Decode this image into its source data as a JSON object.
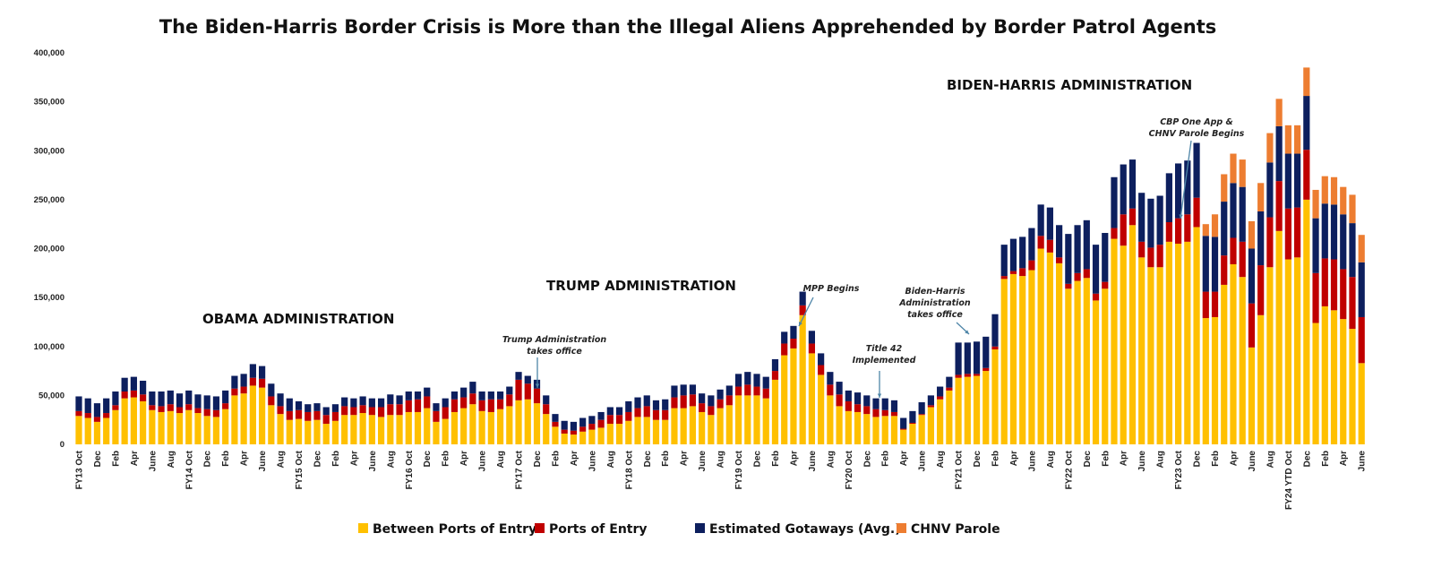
{
  "chart_data": {
    "type": "bar",
    "stacked": true,
    "title": "The Biden-Harris Border Crisis is More than the Illegal Aliens Apprehended by Border Patrol Agents",
    "ylim": [
      0,
      400000
    ],
    "y_ticks": [
      "0",
      "50,000",
      "100,000",
      "150,000",
      "200,000",
      "250,000",
      "300,000",
      "350,000",
      "400,000"
    ],
    "grid": false,
    "legend_position": "bottom",
    "x_tick_labels": [
      "FY13 Oct",
      "Dec",
      "Feb",
      "Apr",
      "June",
      "Aug",
      "FY14 Oct",
      "Dec",
      "Feb",
      "Apr",
      "June",
      "Aug",
      "FY15 Oct",
      "Dec",
      "Feb",
      "Apr",
      "June",
      "Aug",
      "FY16 Oct",
      "Dec",
      "Feb",
      "Apr",
      "June",
      "Aug",
      "FY17 Oct",
      "Dec",
      "Feb",
      "Apr",
      "June",
      "Aug",
      "FY18 Oct",
      "Dec",
      "Feb",
      "Apr",
      "June",
      "Aug",
      "FY19 Oct",
      "Dec",
      "Feb",
      "Apr",
      "June",
      "Aug",
      "FY20 Oct",
      "Dec",
      "Feb",
      "Apr",
      "June",
      "Aug",
      "FY21 Oct",
      "Dec",
      "Feb",
      "Apr",
      "June",
      "Aug",
      "FY22 Oct",
      "Dec",
      "Feb",
      "Apr",
      "June",
      "Aug",
      "FY23 Oct",
      "Dec",
      "Feb",
      "Apr",
      "June",
      "Aug",
      "FY24 YTD Oct",
      "Dec",
      "Feb",
      "Apr",
      "June"
    ],
    "series": [
      {
        "name": "Between Ports of Entry",
        "color": "#FFC000",
        "values": [
          29000,
          27000,
          23000,
          27000,
          35000,
          47000,
          48000,
          44000,
          35000,
          33000,
          34000,
          32000,
          35000,
          32000,
          29000,
          28000,
          36000,
          50000,
          52000,
          60000,
          58000,
          40000,
          31000,
          25000,
          26000,
          24000,
          25000,
          21000,
          24000,
          30000,
          30000,
          32000,
          30000,
          28000,
          30000,
          30000,
          33000,
          33000,
          37000,
          23000,
          26000,
          33000,
          37000,
          41000,
          34000,
          33000,
          36000,
          39000,
          45000,
          46000,
          42000,
          31000,
          18000,
          11000,
          10000,
          13000,
          15000,
          17000,
          21000,
          21000,
          24000,
          28000,
          28000,
          25000,
          25000,
          37000,
          37000,
          39000,
          33000,
          30000,
          37000,
          40000,
          50000,
          50000,
          50000,
          47000,
          66000,
          91000,
          98000,
          132000,
          93000,
          71000,
          50000,
          39000,
          34000,
          33000,
          31000,
          28000,
          29000,
          29000,
          15000,
          21000,
          30000,
          38000,
          46000,
          55000,
          68000,
          69000,
          70000,
          75000,
          97000,
          169000,
          174000,
          172000,
          178000,
          200000,
          196000,
          185000,
          159000,
          167000,
          170000,
          147000,
          159000,
          210000,
          203000,
          224000,
          191000,
          181000,
          181000,
          207000,
          205000,
          207000,
          222000,
          129000,
          130000,
          163000,
          184000,
          171000,
          99000,
          132000,
          181000,
          218000,
          189000,
          191000,
          250000,
          124000,
          141000,
          137000,
          128000,
          118000,
          83000
        ]
      },
      {
        "name": "Ports of Entry",
        "color": "#C00000",
        "values": [
          5000,
          5000,
          5000,
          5000,
          5000,
          7000,
          7000,
          7000,
          5000,
          6000,
          7000,
          6000,
          6000,
          5000,
          7000,
          7000,
          6000,
          7000,
          7000,
          8000,
          9000,
          9000,
          8000,
          9000,
          9000,
          9000,
          9000,
          9000,
          9000,
          9000,
          8000,
          8000,
          8000,
          10000,
          11000,
          11000,
          12000,
          13000,
          12000,
          11000,
          12000,
          13000,
          11000,
          11000,
          11000,
          13000,
          10000,
          12000,
          21000,
          16000,
          15000,
          10000,
          5000,
          4000,
          4000,
          5000,
          6000,
          8000,
          9000,
          9000,
          9000,
          9000,
          11000,
          10000,
          10000,
          11000,
          13000,
          12000,
          9000,
          9000,
          9000,
          10000,
          9000,
          11000,
          9000,
          10000,
          9000,
          12000,
          10000,
          10000,
          10000,
          10000,
          11000,
          12000,
          10000,
          8000,
          8000,
          8000,
          6000,
          4000,
          1000,
          1000,
          1000,
          2000,
          3000,
          3000,
          3000,
          3000,
          2000,
          3000,
          3000,
          3000,
          3000,
          8000,
          10000,
          13000,
          13000,
          6000,
          5000,
          8000,
          9000,
          7000,
          7000,
          11000,
          32000,
          17000,
          16000,
          20000,
          23000,
          20000,
          26000,
          28000,
          30000,
          27000,
          26000,
          30000,
          27000,
          36000,
          45000,
          51000,
          51000,
          51000,
          52000,
          51000,
          51000,
          51000,
          49000,
          52000,
          51000,
          53000,
          47000
        ]
      },
      {
        "name": "Estimated Gotaways (Avg.)",
        "color": "#0D1F5E",
        "values": [
          15000,
          15000,
          14000,
          15000,
          14000,
          14000,
          14000,
          14000,
          14000,
          15000,
          14000,
          14000,
          14000,
          14000,
          14000,
          14000,
          13000,
          13000,
          13000,
          14000,
          13000,
          13000,
          13000,
          13000,
          9000,
          8000,
          8000,
          8000,
          8000,
          9000,
          9000,
          9000,
          9000,
          9000,
          10000,
          9000,
          9000,
          8000,
          9000,
          8000,
          9000,
          8000,
          10000,
          12000,
          9000,
          8000,
          8000,
          8000,
          8000,
          8000,
          9000,
          9000,
          8000,
          9000,
          9000,
          9000,
          8000,
          8000,
          8000,
          8000,
          11000,
          11000,
          11000,
          10000,
          11000,
          12000,
          11000,
          10000,
          10000,
          11000,
          10000,
          10000,
          13000,
          13000,
          13000,
          12000,
          12000,
          12000,
          13000,
          14000,
          13000,
          12000,
          13000,
          13000,
          11000,
          12000,
          11000,
          11000,
          12000,
          12000,
          11000,
          12000,
          12000,
          10000,
          10000,
          11000,
          33000,
          32000,
          33000,
          32000,
          33000,
          32000,
          33000,
          32000,
          33000,
          32000,
          33000,
          33000,
          51000,
          49000,
          50000,
          50000,
          50000,
          52000,
          51000,
          50000,
          50000,
          50000,
          50000,
          50000,
          56000,
          55000,
          56000,
          57000,
          56000,
          55000,
          56000,
          56000,
          56000,
          55000,
          56000,
          56000,
          56000,
          55000,
          55000,
          56000,
          56000,
          56000,
          56000,
          55000,
          56000
        ]
      },
      {
        "name": "CHNV Parole",
        "color": "#ED7D31",
        "values": [
          0,
          0,
          0,
          0,
          0,
          0,
          0,
          0,
          0,
          0,
          0,
          0,
          0,
          0,
          0,
          0,
          0,
          0,
          0,
          0,
          0,
          0,
          0,
          0,
          0,
          0,
          0,
          0,
          0,
          0,
          0,
          0,
          0,
          0,
          0,
          0,
          0,
          0,
          0,
          0,
          0,
          0,
          0,
          0,
          0,
          0,
          0,
          0,
          0,
          0,
          0,
          0,
          0,
          0,
          0,
          0,
          0,
          0,
          0,
          0,
          0,
          0,
          0,
          0,
          0,
          0,
          0,
          0,
          0,
          0,
          0,
          0,
          0,
          0,
          0,
          0,
          0,
          0,
          0,
          0,
          0,
          0,
          0,
          0,
          0,
          0,
          0,
          0,
          0,
          0,
          0,
          0,
          0,
          0,
          0,
          0,
          0,
          0,
          0,
          0,
          0,
          0,
          0,
          0,
          0,
          0,
          0,
          0,
          0,
          0,
          0,
          0,
          0,
          0,
          0,
          0,
          0,
          0,
          0,
          0,
          0,
          0,
          0,
          12000,
          23000,
          28000,
          30000,
          28000,
          28000,
          29000,
          30000,
          28000,
          29000,
          29000,
          29000,
          29000,
          28000,
          28000,
          28000,
          29000,
          28000
        ]
      }
    ],
    "annotations": {
      "obama": "OBAMA ADMINISTRATION",
      "trump": "TRUMP ADMINISTRATION",
      "biden": "BIDEN-HARRIS ADMINISTRATION",
      "trump_office": [
        "Trump Administration",
        "takes office"
      ],
      "mpp": [
        "MPP Begins"
      ],
      "title42": [
        "Title 42",
        "Implemented"
      ],
      "biden_office": [
        "Biden-Harris",
        "Administration",
        "takes office"
      ],
      "cbp_one": [
        "CBP One App &",
        "CHNV Parole Begins"
      ]
    }
  }
}
